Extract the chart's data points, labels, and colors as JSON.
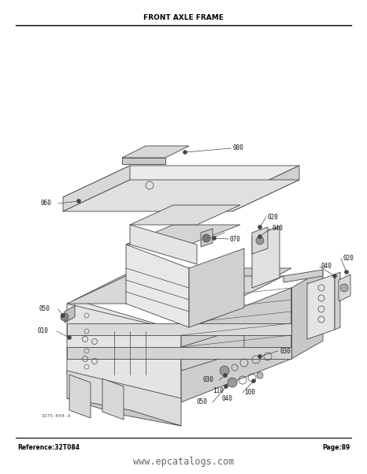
{
  "title": "FRONT AXLE FRAME",
  "reference": "Reference:32T084",
  "page": "Page:89",
  "website": "www.epcatalogs.com",
  "diagram_note": "3275-044-A",
  "bg_color": "#ffffff",
  "text_color": "#000000",
  "draw_color": "#444444",
  "light_fill": "#e8e8e8",
  "mid_fill": "#d0d0d0",
  "dark_fill": "#b8b8b8",
  "very_light": "#f0f0f0",
  "title_fontsize": 6.5,
  "footer_fontsize": 5.5,
  "website_fontsize": 8.5,
  "label_fontsize": 5.5
}
